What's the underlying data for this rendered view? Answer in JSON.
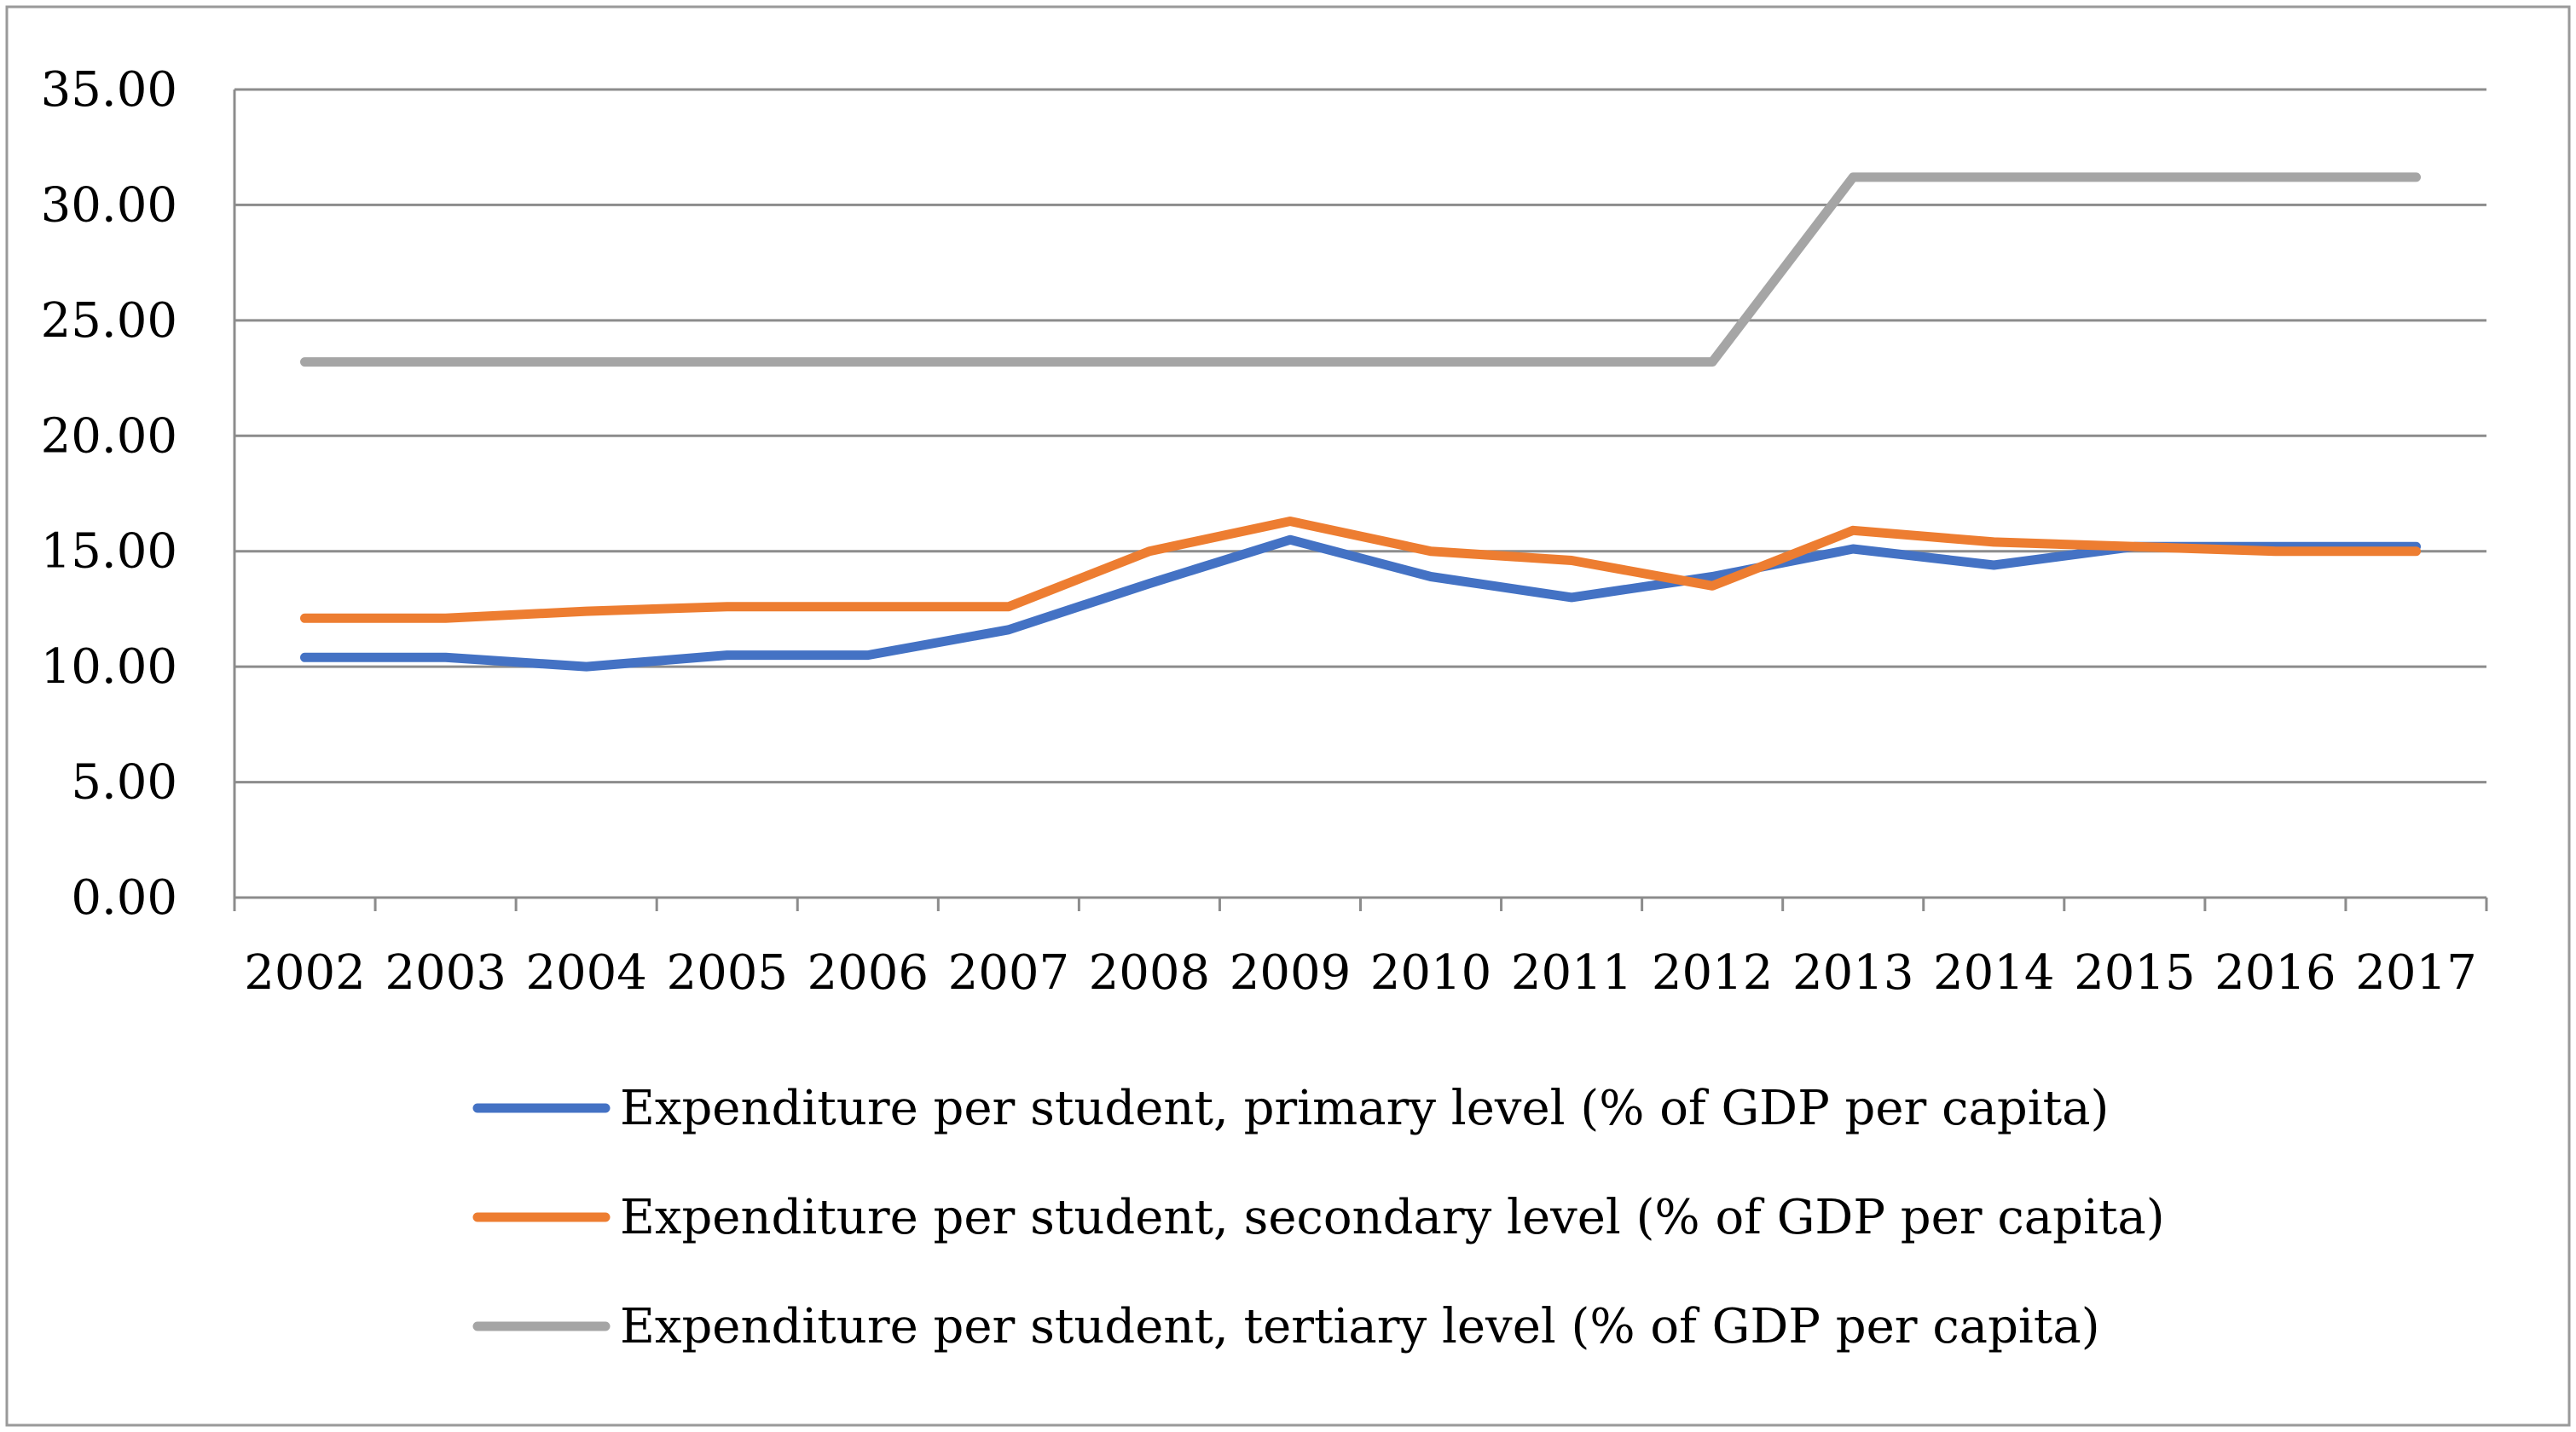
{
  "chart_data": {
    "type": "line",
    "title": "",
    "xlabel": "",
    "ylabel": "",
    "ylim": [
      0,
      35
    ],
    "yticks": [
      "0.00",
      "5.00",
      "10.00",
      "15.00",
      "20.00",
      "25.00",
      "30.00",
      "35.00"
    ],
    "x": [
      "2002",
      "2003",
      "2004",
      "2005",
      "2006",
      "2007",
      "2008",
      "2009",
      "2010",
      "2011",
      "2012",
      "2013",
      "2014",
      "2015",
      "2016",
      "2017"
    ],
    "grid": true,
    "legend_position": "bottom",
    "series": [
      {
        "name": "Expenditure per student, primary level (% of GDP per capita)",
        "color": "#4472C4",
        "values": [
          10.4,
          10.4,
          10.0,
          10.5,
          10.5,
          11.6,
          13.6,
          15.5,
          13.9,
          13.0,
          13.9,
          15.1,
          14.4,
          15.2,
          15.2,
          15.2
        ]
      },
      {
        "name": "Expenditure per student, secondary level (% of GDP per capita)",
        "color": "#ED7D31",
        "values": [
          12.1,
          12.1,
          12.4,
          12.6,
          12.6,
          12.6,
          15.0,
          16.3,
          15.0,
          14.6,
          13.5,
          15.9,
          15.4,
          15.2,
          15.0,
          15.0
        ]
      },
      {
        "name": "Expenditure per student, tertiary level (% of GDP per capita)",
        "color": "#A5A5A5",
        "values": [
          23.2,
          23.2,
          23.2,
          23.2,
          23.2,
          23.2,
          23.2,
          23.2,
          23.2,
          23.2,
          23.2,
          31.2,
          31.2,
          31.2,
          31.2,
          31.2
        ]
      }
    ]
  }
}
